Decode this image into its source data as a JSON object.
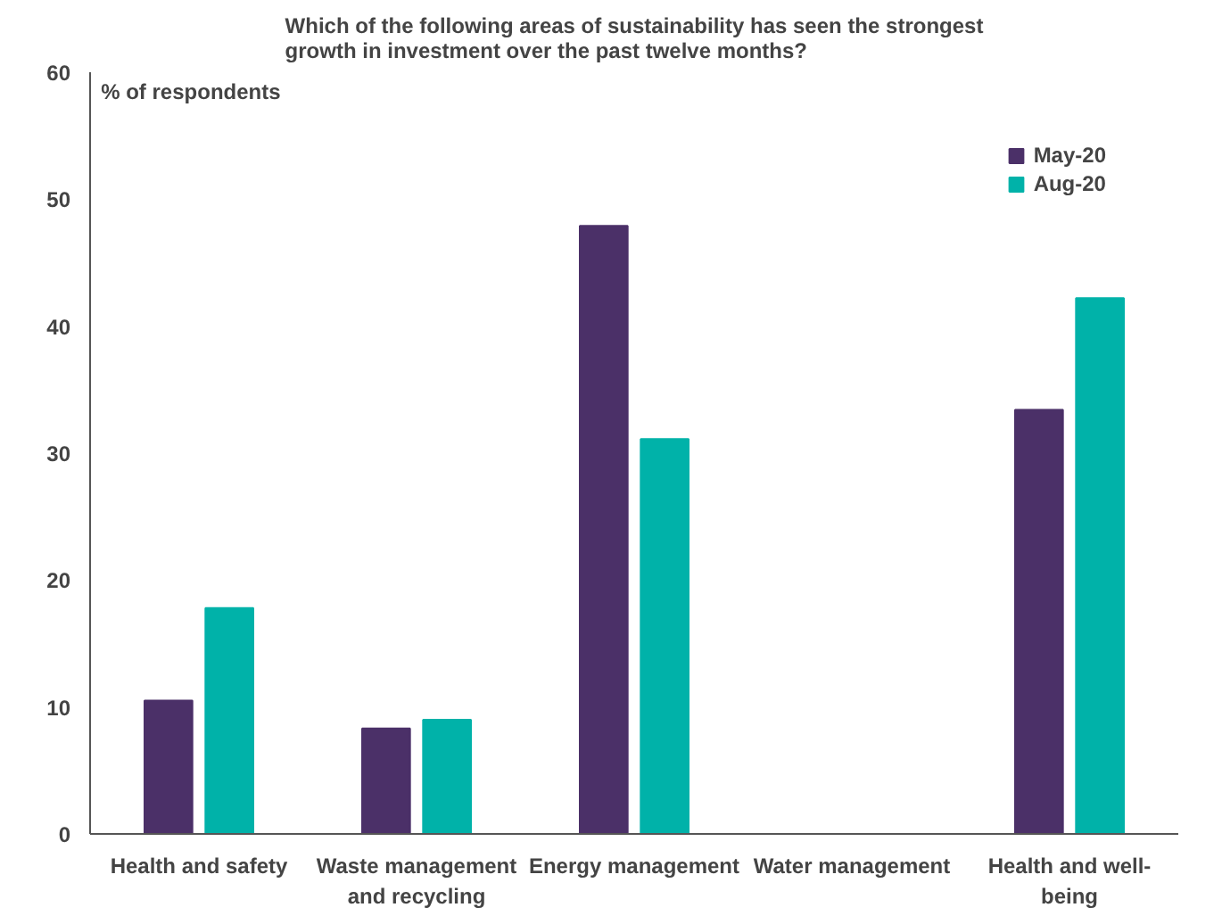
{
  "chart_data": {
    "type": "bar",
    "title": "Which of the following areas of sustainability has seen the strongest\ngrowth in investment over the past twelve months?",
    "ylabel": "% of respondents",
    "categories": [
      "Health and safety",
      "Waste management and recycling",
      "Energy management",
      "Water management",
      "Health and well-being"
    ],
    "series": [
      {
        "name": "May-20",
        "color": "#4b3068",
        "values": [
          10.5,
          8.3,
          47.9,
          null,
          33.4
        ]
      },
      {
        "name": "Aug-20",
        "color": "#00b2a9",
        "values": [
          17.8,
          9.0,
          31.1,
          null,
          42.2
        ]
      }
    ],
    "ylim": [
      0,
      60
    ],
    "yticks": [
      0,
      10,
      20,
      30,
      40,
      50,
      60
    ],
    "grid": false,
    "legend": "top right"
  }
}
